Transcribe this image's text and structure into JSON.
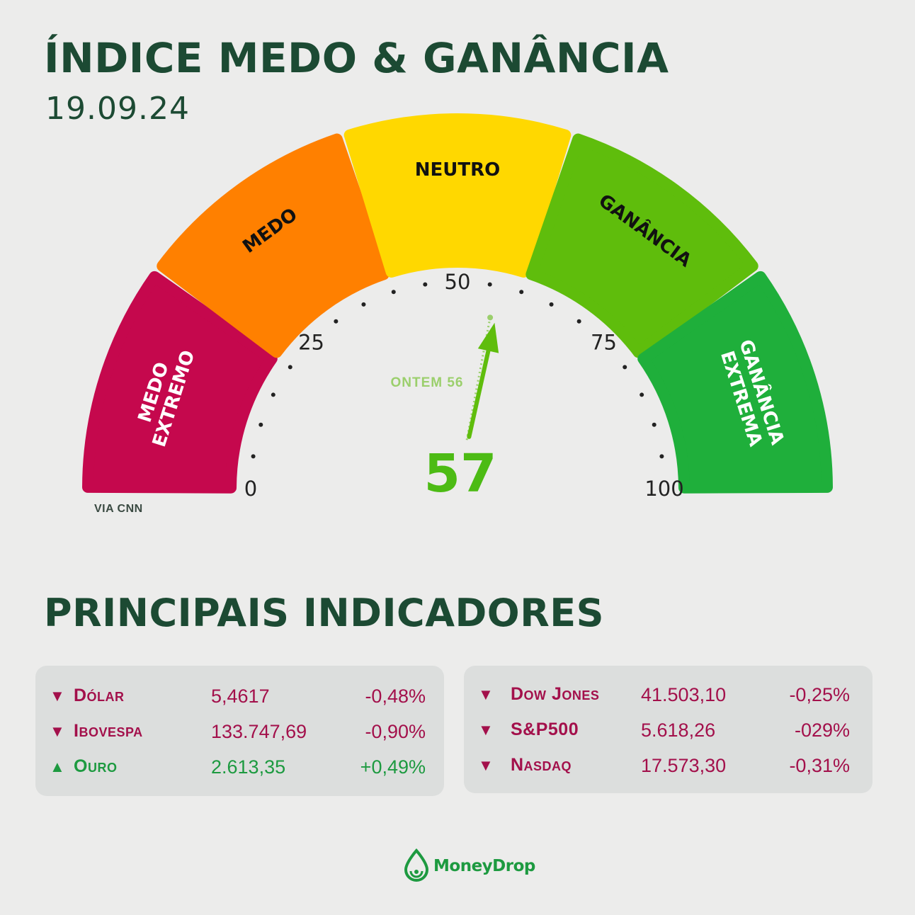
{
  "title": "ÍNDICE MEDO & GANÂNCIA",
  "date": "19.09.24",
  "gauge": {
    "value": 57,
    "value_label": "57",
    "yesterday_value": 56,
    "yesterday_label": "ONTEM 56",
    "ticks": [
      "0",
      "25",
      "50",
      "75",
      "100"
    ],
    "segments": [
      {
        "label1": "MEDO",
        "label2": "EXTREMO",
        "color": "#c5084d",
        "text_color": "#ffffff"
      },
      {
        "label1": "MEDO",
        "label2": "",
        "color": "#ff8000",
        "text_color": "#111111"
      },
      {
        "label1": "NEUTRO",
        "label2": "",
        "color": "#ffd800",
        "text_color": "#111111"
      },
      {
        "label1": "GANÂNCIA",
        "label2": "",
        "color": "#5fbd0c",
        "text_color": "#111111"
      },
      {
        "label1": "GANÂNCIA",
        "label2": "EXTREMA",
        "color": "#1faf3b",
        "text_color": "#ffffff"
      }
    ],
    "needle_color": "#5fbd0c",
    "value_color": "#4cbb14",
    "yesterday_color": "#9bcf6c"
  },
  "source": "VIA CNN",
  "indicators_title": "PRINCIPAIS INDICADORES",
  "indicators_left": [
    {
      "name": "Dólar",
      "value": "5,4617",
      "change": "-0,48%",
      "direction": "down"
    },
    {
      "name": "Ibovespa",
      "value": "133.747,69",
      "change": "-0,90%",
      "direction": "down"
    },
    {
      "name": "Ouro",
      "value": "2.613,35",
      "change": "+0,49%",
      "direction": "up"
    }
  ],
  "indicators_right": [
    {
      "name": "Dow Jones",
      "value": "41.503,10",
      "change": "-0,25%",
      "direction": "down"
    },
    {
      "name": "S&P500",
      "value": "5.618,26",
      "change": "-029%",
      "direction": "down"
    },
    {
      "name": "Nasdaq",
      "value": "17.573,30",
      "change": "-0,31%",
      "direction": "down"
    }
  ],
  "brand": "MoneyDrop",
  "colors": {
    "title": "#1c4a33",
    "down": "#a3104b",
    "up": "#1d9a40"
  }
}
